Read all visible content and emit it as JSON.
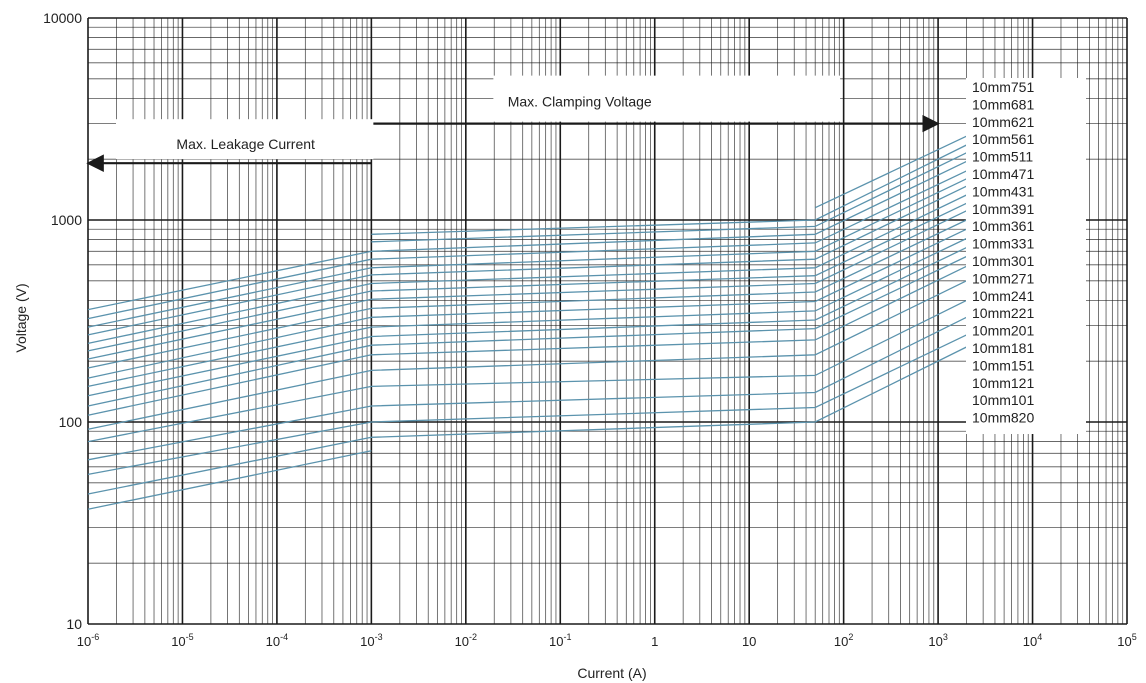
{
  "chart_data": {
    "type": "line",
    "xlabel": "Current (A)",
    "ylabel": "Voltage (V)",
    "xscale": "log",
    "yscale": "log",
    "xlim": [
      1e-06,
      100000
    ],
    "ylim": [
      10,
      10000
    ],
    "grid": true,
    "colors": {
      "series": "#5b93ad",
      "grid": "#1a1a1a",
      "text": "#222222"
    },
    "x_ticks": [
      {
        "v": 1e-06,
        "base": "10",
        "exp": "-6"
      },
      {
        "v": 1e-05,
        "base": "10",
        "exp": "-5"
      },
      {
        "v": 0.0001,
        "base": "10",
        "exp": "-4"
      },
      {
        "v": 0.001,
        "base": "10",
        "exp": "-3"
      },
      {
        "v": 0.01,
        "base": "10",
        "exp": "-2"
      },
      {
        "v": 0.1,
        "base": "10",
        "exp": "-1"
      },
      {
        "v": 1,
        "base": "1",
        "exp": ""
      },
      {
        "v": 10,
        "base": "10",
        "exp": ""
      },
      {
        "v": 100,
        "base": "10",
        "exp": "2"
      },
      {
        "v": 1000,
        "base": "10",
        "exp": "3"
      },
      {
        "v": 10000,
        "base": "10",
        "exp": "4"
      },
      {
        "v": 100000,
        "base": "10",
        "exp": "5"
      }
    ],
    "y_ticks": [
      {
        "v": 10,
        "label": "10"
      },
      {
        "v": 100,
        "label": "100"
      },
      {
        "v": 1000,
        "label": "1000"
      },
      {
        "v": 10000,
        "label": "10000"
      }
    ],
    "annotations": [
      {
        "text": "Max. Clamping Voltage",
        "arrow_from": 0.001,
        "arrow_to": 1000,
        "at_v": 3000,
        "dir": "right"
      },
      {
        "text": "Max. Leakage Current",
        "arrow_from": 0.001,
        "arrow_to": 1e-06,
        "at_v": 2000,
        "dir": "left"
      }
    ],
    "x_points": [
      1e-06,
      0.001,
      50,
      2000
    ],
    "series": [
      {
        "name": "10mm751",
        "values": [
          null,
          null,
          1150,
          2600
        ]
      },
      {
        "name": "10mm681",
        "values": [
          null,
          850,
          1000,
          2350
        ]
      },
      {
        "name": "10mm621",
        "values": [
          null,
          780,
          930,
          2150
        ]
      },
      {
        "name": "10mm561",
        "values": [
          360,
          700,
          850,
          1950
        ]
      },
      {
        "name": "10mm511",
        "values": [
          325,
          640,
          770,
          1750
        ]
      },
      {
        "name": "10mm471",
        "values": [
          295,
          580,
          700,
          1600
        ]
      },
      {
        "name": "10mm431",
        "values": [
          270,
          535,
          640,
          1470
        ]
      },
      {
        "name": "10mm391",
        "values": [
          245,
          485,
          580,
          1330
        ]
      },
      {
        "name": "10mm361",
        "values": [
          225,
          445,
          530,
          1210
        ]
      },
      {
        "name": "10mm331",
        "values": [
          205,
          405,
          485,
          1110
        ]
      },
      {
        "name": "10mm301",
        "values": [
          185,
          365,
          440,
          1000
        ]
      },
      {
        "name": "10mm271",
        "values": [
          165,
          330,
          395,
          900
        ]
      },
      {
        "name": "10mm241",
        "values": [
          150,
          295,
          355,
          810
        ]
      },
      {
        "name": "10mm221",
        "values": [
          135,
          265,
          320,
          730
        ]
      },
      {
        "name": "10mm201",
        "values": [
          120,
          240,
          290,
          660
        ]
      },
      {
        "name": "10mm181",
        "values": [
          108,
          215,
          255,
          590
        ]
      },
      {
        "name": "10mm151",
        "values": [
          92,
          180,
          215,
          500
        ]
      },
      {
        "name": "10mm121",
        "values": [
          80,
          150,
          170,
          400
        ]
      },
      {
        "name": "10mm101",
        "values": [
          65,
          120,
          140,
          330
        ]
      },
      {
        "name": "10mm820",
        "values": [
          55,
          100,
          118,
          270
        ]
      },
      {
        "values": [
          44,
          84,
          100,
          235
        ]
      },
      {
        "values": [
          37,
          72,
          null,
          null
        ]
      }
    ]
  }
}
